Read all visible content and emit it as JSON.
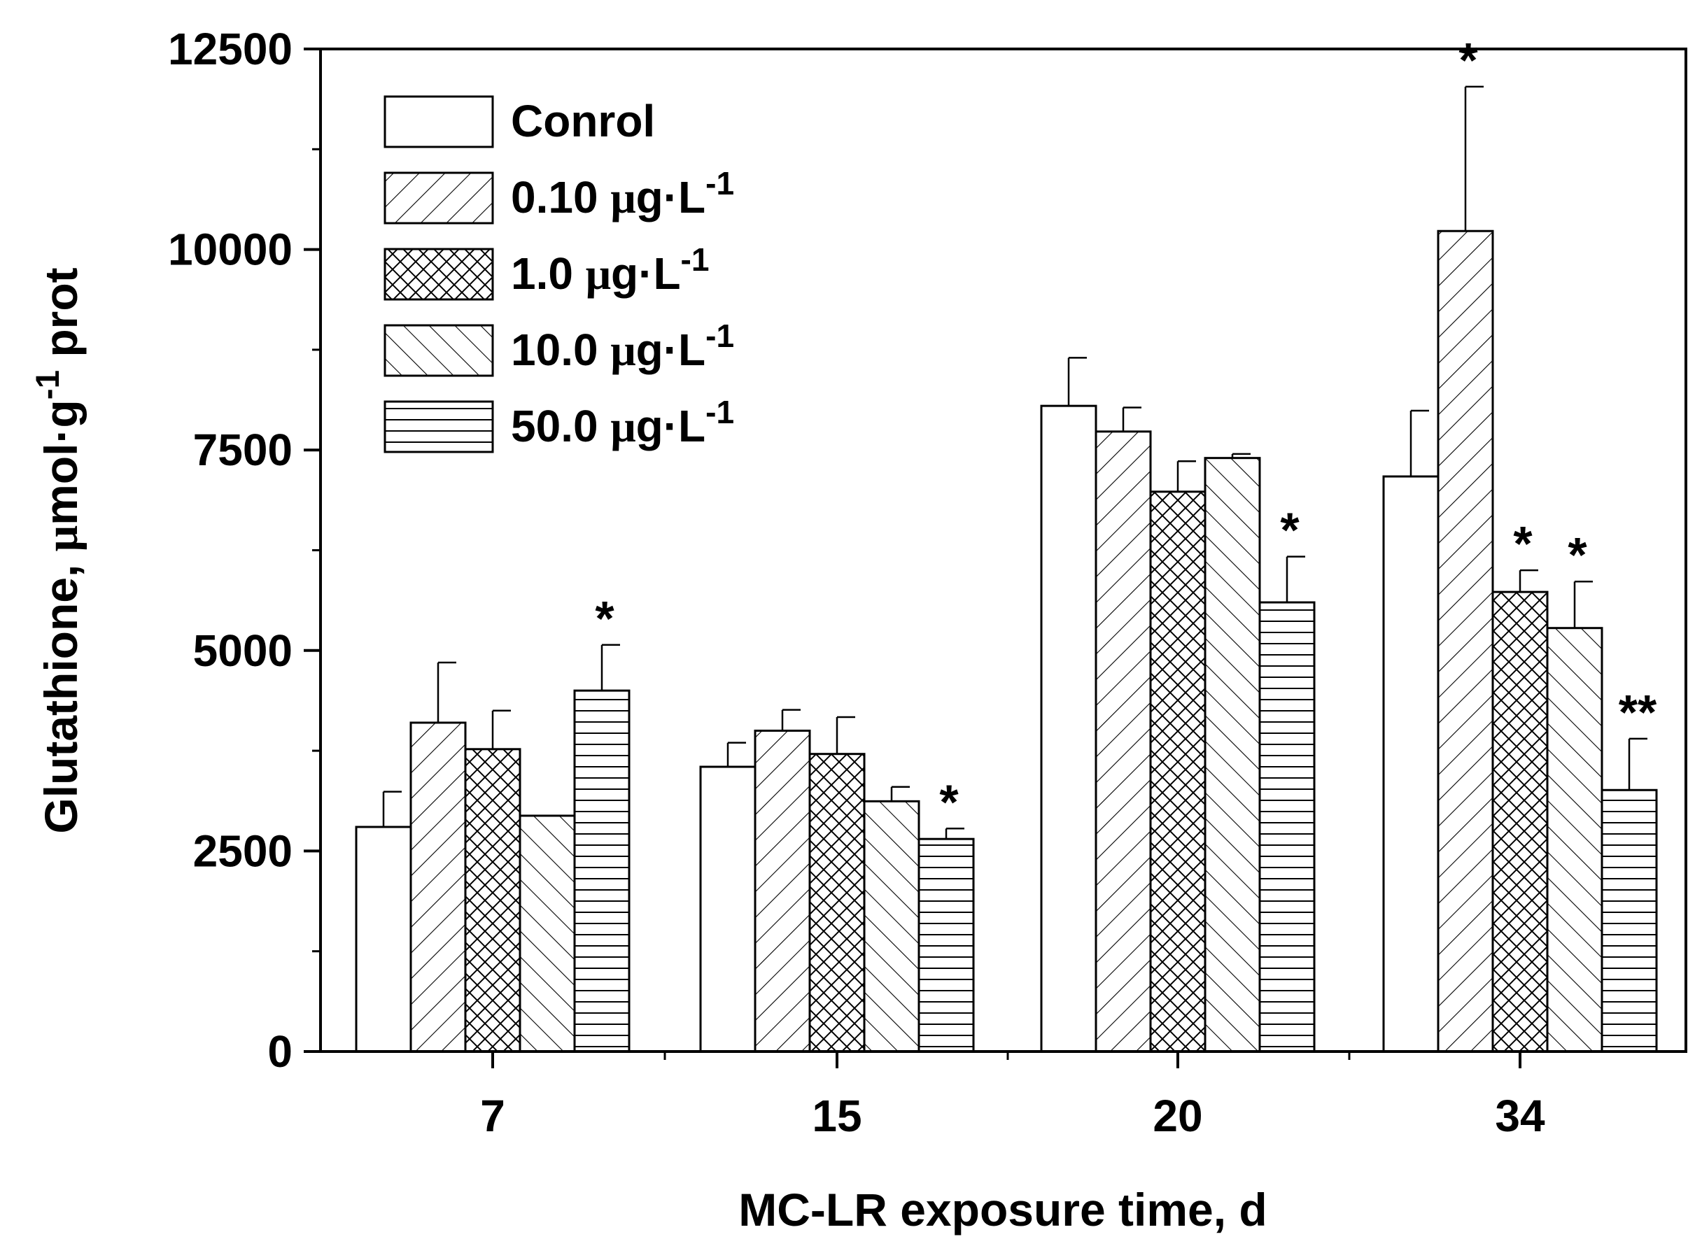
{
  "chart_data": {
    "type": "bar",
    "xlabel": "MC-LR exposure time, d",
    "ylabel_parts": [
      "Glutathione, ",
      "μ",
      "mol·g",
      "-1",
      " prot"
    ],
    "ylim": [
      0,
      12500
    ],
    "yticks": [
      0,
      2500,
      5000,
      7500,
      10000,
      12500
    ],
    "ytick_labels": [
      "0",
      "2500",
      "5000",
      "7500",
      "10000",
      "12500"
    ],
    "categories": [
      "7",
      "15",
      "20",
      "34"
    ],
    "legend_position": "top-left",
    "series": [
      {
        "name": "Conrol",
        "name_parts": [
          "Conrol"
        ],
        "pattern": "none",
        "values": [
          2800,
          3550,
          8050,
          7170
        ],
        "errors": [
          440,
          300,
          600,
          820
        ],
        "marks": [
          "",
          "",
          "",
          ""
        ]
      },
      {
        "name": "0.10 μg·L-1",
        "name_parts": [
          "0.10 ",
          "μ",
          "g·L",
          "-1"
        ],
        "pattern": "forward-diagonal",
        "values": [
          4100,
          4000,
          7730,
          10230
        ],
        "errors": [
          750,
          260,
          300,
          1800
        ],
        "marks": [
          "",
          "",
          "",
          "*"
        ]
      },
      {
        "name": "1.0 μg·L-1",
        "name_parts": [
          "1.0 ",
          "μ",
          "g·L",
          "-1"
        ],
        "pattern": "crosshatch",
        "values": [
          3770,
          3710,
          6980,
          5730
        ],
        "errors": [
          480,
          460,
          380,
          270
        ],
        "marks": [
          "",
          "",
          "",
          "*"
        ]
      },
      {
        "name": "10.0 μg·L-1",
        "name_parts": [
          "10.0 ",
          "μ",
          "g·L",
          "-1"
        ],
        "pattern": "backward-diagonal",
        "values": [
          2940,
          3120,
          7400,
          5280
        ],
        "errors": [
          0,
          180,
          50,
          580
        ],
        "marks": [
          "",
          "",
          "",
          "*"
        ]
      },
      {
        "name": "50.0 μg·L-1",
        "name_parts": [
          "50.0 ",
          "μ",
          "g·L",
          "-1"
        ],
        "pattern": "horizontal",
        "values": [
          4500,
          2650,
          5600,
          3260
        ],
        "errors": [
          570,
          130,
          570,
          640
        ],
        "marks": [
          "*",
          "*",
          "*",
          "**"
        ]
      }
    ]
  }
}
